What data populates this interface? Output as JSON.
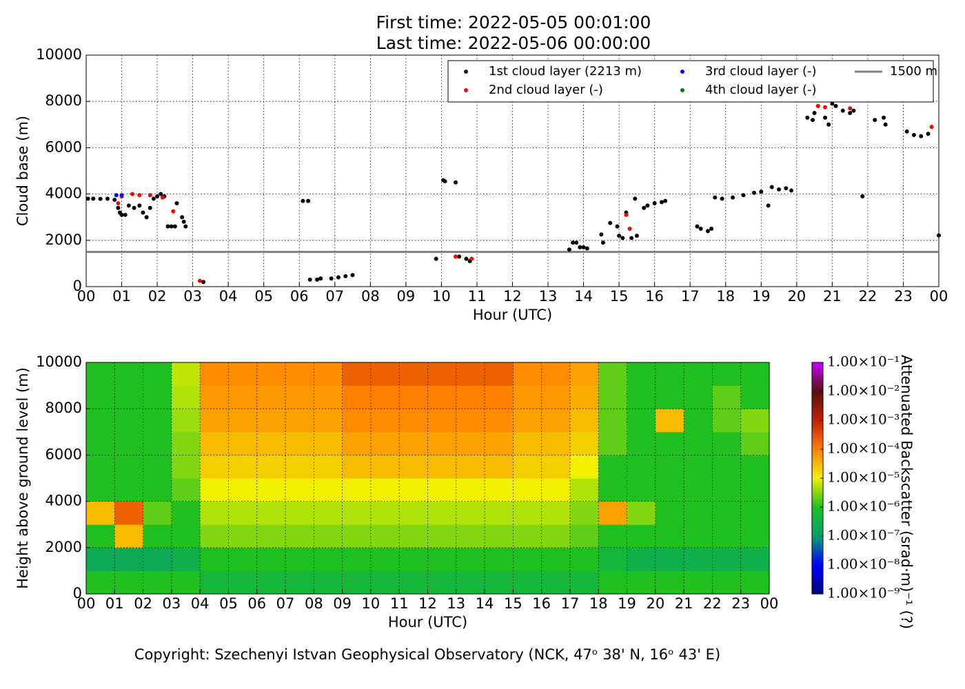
{
  "chart_data": [
    {
      "type": "scatter",
      "title": "First time: 2022-05-05 00:01:00",
      "subtitle": "Last time: 2022-05-06 00:00:00",
      "xlabel": "Hour (UTC)",
      "ylabel": "Cloud base (m)",
      "xlim": [
        0,
        24
      ],
      "ylim": [
        0,
        10000
      ],
      "xticks": [
        {
          "value": 0,
          "label": "00"
        },
        {
          "value": 1,
          "label": "01"
        },
        {
          "value": 2,
          "label": "02"
        },
        {
          "value": 3,
          "label": "03"
        },
        {
          "value": 4,
          "label": "04"
        },
        {
          "value": 5,
          "label": "05"
        },
        {
          "value": 6,
          "label": "06"
        },
        {
          "value": 7,
          "label": "07"
        },
        {
          "value": 8,
          "label": "08"
        },
        {
          "value": 9,
          "label": "09"
        },
        {
          "value": 10,
          "label": "10"
        },
        {
          "value": 11,
          "label": "11"
        },
        {
          "value": 12,
          "label": "12"
        },
        {
          "value": 13,
          "label": "13"
        },
        {
          "value": 14,
          "label": "14"
        },
        {
          "value": 15,
          "label": "15"
        },
        {
          "value": 16,
          "label": "16"
        },
        {
          "value": 17,
          "label": "17"
        },
        {
          "value": 18,
          "label": "18"
        },
        {
          "value": 19,
          "label": "19"
        },
        {
          "value": 20,
          "label": "20"
        },
        {
          "value": 21,
          "label": "21"
        },
        {
          "value": 22,
          "label": "22"
        },
        {
          "value": 23,
          "label": "23"
        },
        {
          "value": 24,
          "label": "00"
        }
      ],
      "yticks": [
        0,
        2000,
        4000,
        6000,
        8000,
        10000
      ],
      "grid": true,
      "series": [
        {
          "name": "1st cloud layer (2213 m)",
          "color": "#000000",
          "x": [
            0.05,
            0.2,
            0.4,
            0.6,
            0.8,
            0.9,
            0.95,
            1.0,
            1.1,
            1.2,
            1.35,
            1.5,
            1.6,
            1.7,
            1.8,
            1.9,
            2.0,
            2.1,
            2.2,
            2.3,
            2.4,
            2.5,
            2.55,
            2.7,
            2.75,
            2.8,
            3.3,
            6.1,
            6.25,
            6.3,
            6.5,
            6.6,
            6.9,
            7.1,
            7.3,
            7.5,
            9.85,
            10.05,
            10.1,
            10.4,
            10.5,
            10.7,
            10.8,
            13.6,
            13.7,
            13.8,
            13.9,
            14.0,
            14.1,
            14.5,
            14.55,
            14.75,
            14.95,
            15.0,
            15.1,
            15.2,
            15.35,
            15.45,
            15.5,
            15.7,
            15.8,
            16.0,
            16.2,
            16.3,
            17.2,
            17.3,
            17.5,
            17.6,
            17.7,
            17.9,
            18.2,
            18.5,
            18.8,
            19.0,
            19.2,
            19.3,
            19.5,
            19.7,
            19.85,
            20.3,
            20.45,
            20.5,
            20.6,
            20.8,
            20.9,
            21.0,
            21.1,
            21.3,
            21.5,
            21.6,
            21.85,
            22.2,
            22.45,
            22.5,
            23.1,
            23.3,
            23.5,
            23.7,
            24.0
          ],
          "values": [
            3800,
            3800,
            3790,
            3800,
            3750,
            3400,
            3200,
            3100,
            3100,
            3500,
            3400,
            3500,
            3200,
            3000,
            3400,
            3800,
            3900,
            4000,
            3900,
            2600,
            2600,
            2600,
            3600,
            3000,
            2800,
            2600,
            200,
            3700,
            3700,
            300,
            300,
            350,
            350,
            400,
            450,
            500,
            1200,
            4600,
            4550,
            4500,
            1300,
            1200,
            1100,
            1600,
            1900,
            1900,
            1700,
            1700,
            1650,
            2250,
            1900,
            2750,
            2600,
            2200,
            2100,
            3200,
            2100,
            3800,
            2200,
            3400,
            3500,
            3600,
            3650,
            3700,
            2600,
            2500,
            2400,
            2500,
            3850,
            3800,
            3850,
            3950,
            4050,
            4100,
            3500,
            4300,
            4200,
            4250,
            4150,
            7300,
            7200,
            7500,
            7800,
            7300,
            7000,
            7900,
            7800,
            7600,
            7500,
            7600,
            3900,
            7200,
            7300,
            7000,
            6700,
            6550,
            6500,
            6600,
            2213
          ]
        },
        {
          "name": "2nd cloud layer (-)",
          "color": "#ff0000",
          "x": [
            0.9,
            1.0,
            1.3,
            1.5,
            1.8,
            2.15,
            2.45,
            3.2,
            10.4,
            10.85,
            15.2,
            15.3,
            20.6,
            20.8,
            21.5,
            23.8
          ],
          "values": [
            3600,
            3900,
            4000,
            3950,
            3950,
            3850,
            3250,
            250,
            1300,
            1200,
            3100,
            2500,
            7800,
            7750,
            7700,
            6900
          ]
        },
        {
          "name": "3rd cloud layer (-)",
          "color": "#0000ff",
          "x": [
            0.85,
            1.0
          ],
          "values": [
            3950,
            3950
          ]
        },
        {
          "name": "4th cloud layer (-)",
          "color": "#008000",
          "x": [],
          "values": []
        }
      ],
      "reference_line": {
        "name": "1500 m",
        "value": 1500,
        "color": "#808080"
      }
    },
    {
      "type": "heatmap",
      "xlabel": "Hour (UTC)",
      "ylabel": "Height above ground level (m)",
      "colorbar_label": "Attenuated Backscatter (srad·m)⁻¹ (?)",
      "xlim": [
        0,
        24
      ],
      "ylim": [
        0,
        10000
      ],
      "xticks": [
        {
          "value": 0,
          "label": "00"
        },
        {
          "value": 1,
          "label": "01"
        },
        {
          "value": 2,
          "label": "02"
        },
        {
          "value": 3,
          "label": "03"
        },
        {
          "value": 4,
          "label": "04"
        },
        {
          "value": 5,
          "label": "05"
        },
        {
          "value": 6,
          "label": "06"
        },
        {
          "value": 7,
          "label": "07"
        },
        {
          "value": 8,
          "label": "08"
        },
        {
          "value": 9,
          "label": "09"
        },
        {
          "value": 10,
          "label": "10"
        },
        {
          "value": 11,
          "label": "11"
        },
        {
          "value": 12,
          "label": "12"
        },
        {
          "value": 13,
          "label": "13"
        },
        {
          "value": 14,
          "label": "14"
        },
        {
          "value": 15,
          "label": "15"
        },
        {
          "value": 16,
          "label": "16"
        },
        {
          "value": 17,
          "label": "17"
        },
        {
          "value": 18,
          "label": "18"
        },
        {
          "value": 19,
          "label": "19"
        },
        {
          "value": 20,
          "label": "20"
        },
        {
          "value": 21,
          "label": "21"
        },
        {
          "value": 22,
          "label": "22"
        },
        {
          "value": 23,
          "label": "23"
        },
        {
          "value": 24,
          "label": "00"
        }
      ],
      "yticks": [
        0,
        2000,
        4000,
        6000,
        8000,
        10000
      ],
      "grid": true,
      "x_bins": [
        0,
        1,
        2,
        3,
        4,
        5,
        6,
        7,
        8,
        9,
        10,
        11,
        12,
        13,
        14,
        15,
        16,
        17,
        18,
        19,
        20,
        21,
        22,
        23,
        24
      ],
      "y_bins": [
        0,
        1000,
        2000,
        3000,
        4000,
        5000,
        6000,
        7000,
        8000,
        9000,
        10000
      ],
      "z": [
        [
          1e-06,
          1e-06,
          1e-06,
          1e-06,
          5e-07,
          5e-07,
          5e-07,
          5e-07,
          5e-07,
          5e-07,
          5e-07,
          5e-07,
          5e-07,
          5e-07,
          5e-07,
          5e-07,
          5e-07,
          5e-07,
          1e-06,
          1e-06,
          1e-06,
          1e-06,
          1e-06,
          1e-06
        ],
        [
          2e-07,
          2e-07,
          2e-07,
          3e-07,
          1e-06,
          1e-06,
          1e-06,
          1e-06,
          1e-06,
          1e-06,
          1e-06,
          1e-06,
          1e-06,
          1e-06,
          1e-06,
          1e-06,
          1e-06,
          1e-06,
          5e-07,
          3e-07,
          3e-07,
          3e-07,
          3e-07,
          3e-07
        ],
        [
          1e-06,
          3e-05,
          1e-06,
          1e-06,
          3e-06,
          3e-06,
          3e-06,
          3e-06,
          3e-06,
          3e-06,
          3e-06,
          3e-06,
          3e-06,
          3e-06,
          3e-06,
          3e-06,
          3e-06,
          2e-06,
          1e-06,
          1e-06,
          1e-06,
          1e-06,
          1e-06,
          1e-06
        ],
        [
          3e-05,
          0.0002,
          2e-06,
          1e-06,
          5e-06,
          5e-06,
          5e-06,
          5e-06,
          5e-06,
          5e-06,
          5e-06,
          5e-06,
          5e-06,
          5e-06,
          5e-06,
          5e-06,
          5e-06,
          3e-06,
          5e-05,
          3e-06,
          1e-06,
          1e-06,
          1e-06,
          1e-06
        ],
        [
          1e-06,
          1e-06,
          1e-06,
          2e-06,
          1e-05,
          1e-05,
          1e-05,
          1e-05,
          1e-05,
          1e-05,
          1e-05,
          1e-05,
          1e-05,
          1e-05,
          1e-05,
          1e-05,
          1e-05,
          5e-06,
          1e-06,
          1e-06,
          1e-06,
          1e-06,
          1e-06,
          1e-06
        ],
        [
          1e-06,
          1e-06,
          1e-06,
          3e-06,
          2e-05,
          2e-05,
          2e-05,
          2e-05,
          2e-05,
          3e-05,
          3e-05,
          3e-05,
          3e-05,
          3e-05,
          3e-05,
          2e-05,
          2e-05,
          1e-05,
          1e-06,
          1e-06,
          1e-06,
          1e-06,
          1e-06,
          1e-06
        ],
        [
          1e-06,
          1e-06,
          1e-06,
          3e-06,
          3e-05,
          3e-05,
          3e-05,
          3e-05,
          3e-05,
          5e-05,
          5e-05,
          5e-05,
          5e-05,
          5e-05,
          5e-05,
          3e-05,
          3e-05,
          2e-05,
          2e-06,
          1e-06,
          1e-06,
          1e-06,
          1e-06,
          2e-06
        ],
        [
          1e-06,
          1e-06,
          1e-06,
          4e-06,
          5e-05,
          5e-05,
          5e-05,
          5e-05,
          5e-05,
          8e-05,
          8e-05,
          8e-05,
          8e-05,
          8e-05,
          8e-05,
          5e-05,
          5e-05,
          3e-05,
          2e-06,
          1e-06,
          3e-05,
          1e-06,
          2e-06,
          3e-06
        ],
        [
          1e-06,
          1e-06,
          1e-06,
          5e-06,
          6e-05,
          6e-05,
          6e-05,
          6e-05,
          6e-05,
          0.0001,
          0.0001,
          0.0001,
          0.0001,
          0.0001,
          0.0001,
          6e-05,
          6e-05,
          4e-05,
          2e-06,
          1e-06,
          1e-06,
          1e-06,
          2e-06,
          1e-06
        ],
        [
          1e-06,
          1e-06,
          1e-06,
          6e-06,
          8e-05,
          8e-05,
          8e-05,
          8e-05,
          8e-05,
          0.0002,
          0.0002,
          0.0002,
          0.0002,
          0.0002,
          0.0002,
          8e-05,
          8e-05,
          5e-05,
          2e-06,
          1e-06,
          1e-06,
          1e-06,
          1e-06,
          1e-06
        ]
      ],
      "zlim": [
        1e-09,
        0.1
      ],
      "log_color": true,
      "colormap": [
        "#00007f",
        "#0000ff",
        "#00a070",
        "#20c020",
        "#f0f000",
        "#ff8000",
        "#c02000",
        "#5a1010",
        "#c000ff"
      ],
      "zticks": [
        {
          "value": 1e-09,
          "label": "1.00×10⁻⁹"
        },
        {
          "value": 1e-08,
          "label": "1.00×10⁻⁸"
        },
        {
          "value": 1e-07,
          "label": "1.00×10⁻⁷"
        },
        {
          "value": 1e-06,
          "label": "1.00×10⁻⁶"
        },
        {
          "value": 1e-05,
          "label": "1.00×10⁻⁵"
        },
        {
          "value": 0.0001,
          "label": "1.00×10⁻⁴"
        },
        {
          "value": 0.001,
          "label": "1.00×10⁻³"
        },
        {
          "value": 0.01,
          "label": "1.00×10⁻²"
        },
        {
          "value": 0.1,
          "label": "1.00×10⁻¹"
        }
      ]
    }
  ],
  "copyright": "Copyright: Szechenyi Istvan Geophysical Observatory (NCK, 47ᵒ  38' N, 16ᵒ  43' E)"
}
